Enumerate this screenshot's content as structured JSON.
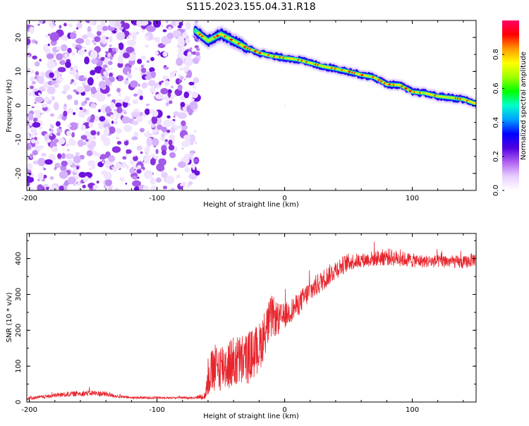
{
  "title": "S115.2023.155.04.31.R18",
  "chart_data": [
    {
      "type": "heatmap",
      "xlabel": "Height of straight line (km)",
      "ylabel": "Frequency (Hz)",
      "xlim": [
        -202,
        150
      ],
      "ylim": [
        -25,
        25
      ],
      "x_ticks": [
        -200,
        -100,
        0,
        100
      ],
      "y_ticks": [
        -20,
        -10,
        0,
        10,
        20
      ],
      "noise_region_x": [
        -202,
        -70
      ],
      "signal_track": {
        "x": [
          -70,
          -60,
          -50,
          -40,
          -30,
          -20,
          -10,
          0,
          10,
          20,
          30,
          40,
          50,
          60,
          70,
          80,
          90,
          100,
          110,
          120,
          130,
          140,
          150
        ],
        "y": [
          22,
          19,
          21,
          19,
          17,
          15.5,
          14.5,
          14,
          13.5,
          12.5,
          11.5,
          10.8,
          10,
          9,
          8.3,
          6.2,
          6,
          4,
          3.6,
          2.7,
          2.3,
          1.8,
          0.5
        ]
      },
      "grid": false
    },
    {
      "type": "colorbar",
      "label": "Normalized spectral amplitude",
      "range": [
        0,
        1
      ],
      "ticks": [
        "0.0",
        "0.2",
        "0.4",
        "0.6",
        "0.8"
      ],
      "tick_values": [
        0,
        0.2,
        0.4,
        0.6,
        0.8
      ],
      "colors": [
        "#ffffff",
        "#e8cfff",
        "#b060f0",
        "#5000e0",
        "#0000ff",
        "#00a0ff",
        "#00ffcc",
        "#00ff00",
        "#a0ff00",
        "#ffff00",
        "#ff9900",
        "#ff0000",
        "#ff0066"
      ]
    },
    {
      "type": "line",
      "xlabel": "Height of straight line (km)",
      "ylabel": "SNR (10 * v/v)",
      "xlim": [
        -202,
        150
      ],
      "ylim": [
        0,
        470
      ],
      "x_ticks": [
        -200,
        -100,
        0,
        100
      ],
      "y_ticks": [
        0,
        100,
        200,
        300,
        400
      ],
      "series": [
        {
          "color": "#e8242c",
          "x": [
            -202,
            -190,
            -180,
            -170,
            -160,
            -150,
            -140,
            -130,
            -120,
            -110,
            -100,
            -90,
            -80,
            -70,
            -62,
            -60,
            -55,
            -50,
            -40,
            -30,
            -20,
            -15,
            -10,
            -5,
            0,
            10,
            20,
            30,
            40,
            50,
            60,
            70,
            80,
            90,
            100,
            110,
            120,
            130,
            140,
            150
          ],
          "y": [
            10,
            14,
            18,
            22,
            24,
            25,
            22,
            15,
            12,
            12,
            12,
            12,
            12,
            12,
            18,
            70,
            90,
            100,
            110,
            120,
            150,
            200,
            240,
            230,
            240,
            270,
            310,
            340,
            370,
            390,
            395,
            400,
            405,
            400,
            395,
            392,
            392,
            392,
            388,
            400
          ],
          "noise": [
            4,
            5,
            6,
            7,
            8,
            8,
            8,
            4,
            3,
            3,
            3,
            3,
            3,
            3,
            12,
            60,
            70,
            70,
            75,
            75,
            70,
            65,
            60,
            45,
            35,
            32,
            32,
            30,
            28,
            25,
            20,
            22,
            25,
            22,
            20,
            18,
            18,
            18,
            18,
            20
          ]
        }
      ],
      "grid": false
    }
  ]
}
